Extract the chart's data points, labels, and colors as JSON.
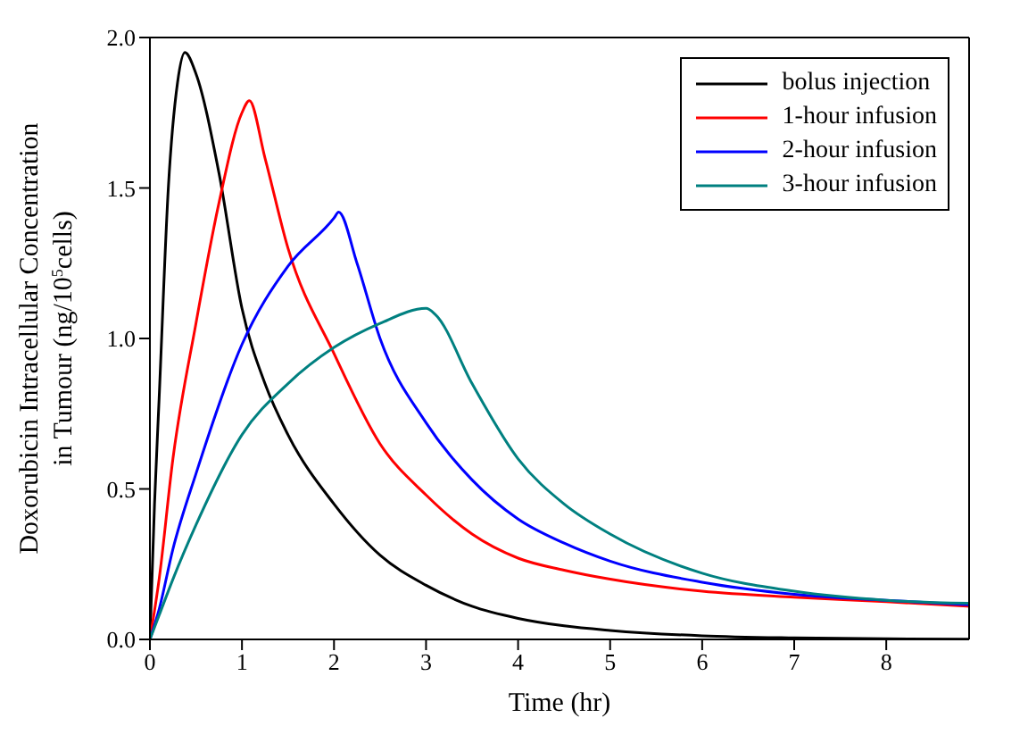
{
  "chart_data": {
    "type": "line",
    "xlabel": "Time (hr)",
    "ylabel": "Doxorubicin Intracellular Concentration\nin Tumour (ng/10$^{5}$cells)",
    "xlim": [
      0,
      8.9
    ],
    "xticks": [
      0,
      1,
      2,
      3,
      4,
      5,
      6,
      7,
      8
    ],
    "ylim": [
      0,
      2
    ],
    "yticks": [
      {
        "value": 0,
        "label": "0.0"
      },
      {
        "value": 0.5,
        "label": "0.5"
      },
      {
        "value": 1,
        "label": "1.0"
      },
      {
        "value": 1.5,
        "label": "1.5"
      },
      {
        "value": 2,
        "label": "2.0"
      }
    ],
    "legend": "top right",
    "marker": "none",
    "line_style": "solid",
    "series": [
      {
        "name": "bolus injection",
        "color": "#000000",
        "x": [
          0,
          0.05,
          0.1,
          0.2,
          0.3,
          0.38,
          0.5,
          0.75,
          1,
          1.25,
          1.5,
          2,
          2.5,
          3,
          3.5,
          4,
          4.5,
          5,
          6,
          7,
          8,
          8.9
        ],
        "values": [
          0,
          0.45,
          0.8,
          1.5,
          1.85,
          1.95,
          1.88,
          1.55,
          1.1,
          0.85,
          0.68,
          0.45,
          0.28,
          0.18,
          0.11,
          0.07,
          0.045,
          0.03,
          0.012,
          0.005,
          0.002,
          0.001
        ]
      },
      {
        "name": "1-hour infusion",
        "color": "#ff0000",
        "x": [
          0,
          0.1,
          0.25,
          0.5,
          0.75,
          1,
          1.08,
          1.25,
          1.5,
          2,
          2.5,
          3,
          3.5,
          4,
          4.5,
          5,
          6,
          7,
          8,
          8.9
        ],
        "values": [
          0,
          0.2,
          0.6,
          1.05,
          1.45,
          1.75,
          1.79,
          1.6,
          1.3,
          0.95,
          0.65,
          0.48,
          0.35,
          0.27,
          0.23,
          0.2,
          0.16,
          0.14,
          0.125,
          0.11
        ]
      },
      {
        "name": "2-hour infusion",
        "color": "#0000ff",
        "x": [
          0,
          0.1,
          0.25,
          0.5,
          1,
          1.5,
          2,
          2.05,
          2.25,
          2.5,
          3,
          3.5,
          4,
          4.5,
          5,
          6,
          7,
          8,
          8.9
        ],
        "values": [
          0,
          0.1,
          0.3,
          0.55,
          0.98,
          1.24,
          1.4,
          1.42,
          1.25,
          1.0,
          0.72,
          0.53,
          0.4,
          0.32,
          0.26,
          0.19,
          0.15,
          0.13,
          0.115
        ]
      },
      {
        "name": "3-hour infusion",
        "color": "#008080",
        "x": [
          0,
          0.1,
          0.25,
          0.5,
          1,
          1.5,
          2,
          2.5,
          3,
          3.1,
          3.5,
          4,
          4.5,
          5,
          6,
          7,
          8,
          8.9
        ],
        "values": [
          0,
          0.08,
          0.2,
          0.38,
          0.68,
          0.85,
          0.97,
          1.05,
          1.1,
          1.08,
          0.85,
          0.6,
          0.45,
          0.35,
          0.22,
          0.16,
          0.13,
          0.12
        ]
      }
    ]
  }
}
